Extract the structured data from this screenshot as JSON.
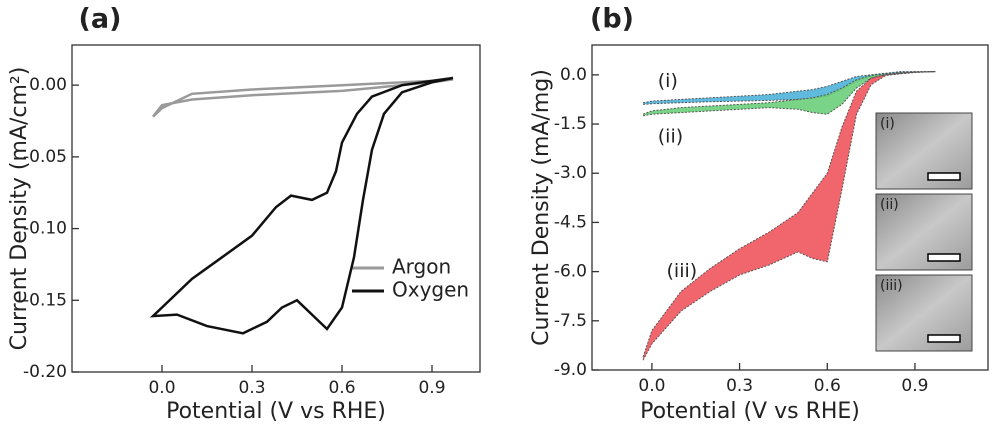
{
  "chart_data": [
    {
      "type": "line",
      "title": "(a)",
      "xlabel": "Potential (V vs RHE)",
      "ylabel": "Current Density (mA/cm²)",
      "xlim": [
        -0.3,
        1.06
      ],
      "ylim": [
        -0.2,
        0.028
      ],
      "xticks": [
        {
          "value": 0,
          "label": "0.0"
        },
        0.3,
        0.6,
        0.9
      ],
      "yticks": [
        {
          "value": 0,
          "label": "0.00"
        },
        -0.05,
        {
          "value": -0.1,
          "label": "-0.10"
        },
        -0.15,
        {
          "value": -0.2,
          "label": "-0.20"
        }
      ],
      "legend": "right",
      "series": [
        {
          "name": "Argon",
          "color": "#9a9a9a",
          "x": [
            -0.03,
            0.0,
            0.1,
            0.3,
            0.6,
            0.9,
            0.97,
            0.9,
            0.6,
            0.3,
            0.1,
            0.0,
            -0.03
          ],
          "values": [
            -0.022,
            -0.016,
            -0.006,
            -0.003,
            0.0,
            0.003,
            0.004,
            0.002,
            -0.004,
            -0.007,
            -0.01,
            -0.014,
            -0.022
          ]
        },
        {
          "name": "Oxygen",
          "color": "#111111",
          "x": [
            0.97,
            0.9,
            0.8,
            0.74,
            0.7,
            0.67,
            0.64,
            0.6,
            0.55,
            0.5,
            0.45,
            0.4,
            0.35,
            0.27,
            0.15,
            0.05,
            -0.03,
            0.0,
            0.1,
            0.2,
            0.3,
            0.38,
            0.43,
            0.5,
            0.55,
            0.58,
            0.6,
            0.65,
            0.7,
            0.8,
            0.9,
            0.97
          ],
          "values": [
            0.005,
            0.002,
            -0.005,
            -0.02,
            -0.045,
            -0.08,
            -0.12,
            -0.155,
            -0.17,
            -0.16,
            -0.15,
            -0.155,
            -0.165,
            -0.173,
            -0.168,
            -0.16,
            -0.161,
            -0.155,
            -0.135,
            -0.12,
            -0.105,
            -0.085,
            -0.077,
            -0.08,
            -0.075,
            -0.06,
            -0.04,
            -0.02,
            -0.008,
            0.0,
            0.003,
            0.005
          ]
        }
      ]
    },
    {
      "type": "band",
      "title": "(b)",
      "xlabel": "Potential (V vs RHE)",
      "ylabel": "Current Density (mA/mg)",
      "xlim": [
        -0.205,
        1.15
      ],
      "ylim": [
        -9.0,
        0.91
      ],
      "xticks": [
        {
          "value": 0,
          "label": "0.0"
        },
        0.3,
        0.6,
        0.9
      ],
      "yticks": [
        {
          "value": 0,
          "label": "0.0"
        },
        -1.5,
        {
          "value": -3,
          "label": "-3.0"
        },
        -4.5,
        {
          "value": -6,
          "label": "-6.0"
        },
        -7.5,
        {
          "value": -9,
          "label": "-9.0"
        }
      ],
      "x": [
        -0.03,
        0.0,
        0.1,
        0.2,
        0.3,
        0.4,
        0.5,
        0.55,
        0.6,
        0.65,
        0.7,
        0.75,
        0.8,
        0.85,
        0.9,
        0.97
      ],
      "series": [
        {
          "name": "(i)",
          "color": "#4fb3d9",
          "upper": [
            -0.85,
            -0.8,
            -0.75,
            -0.7,
            -0.65,
            -0.6,
            -0.5,
            -0.45,
            -0.35,
            -0.2,
            -0.05,
            0.0,
            0.05,
            0.1,
            0.1,
            0.1
          ],
          "lower": [
            -0.9,
            -0.88,
            -0.85,
            -0.82,
            -0.8,
            -0.78,
            -0.75,
            -0.72,
            -0.65,
            -0.45,
            -0.2,
            -0.05,
            0.0,
            0.05,
            0.08,
            0.1
          ]
        },
        {
          "name": "(ii)",
          "color": "#6ccf7a",
          "upper": [
            -1.2,
            -1.1,
            -1.0,
            -0.95,
            -0.9,
            -0.85,
            -0.75,
            -0.7,
            -0.6,
            -0.4,
            -0.15,
            -0.02,
            0.03,
            0.07,
            0.1,
            0.1
          ],
          "lower": [
            -1.25,
            -1.2,
            -1.15,
            -1.1,
            -1.05,
            -1.0,
            -1.05,
            -1.15,
            -1.2,
            -0.9,
            -0.4,
            -0.1,
            0.0,
            0.05,
            0.08,
            0.1
          ]
        },
        {
          "name": "(iii)",
          "color": "#f0545c",
          "upper": [
            -8.6,
            -7.8,
            -6.6,
            -5.9,
            -5.3,
            -4.8,
            -4.2,
            -3.6,
            -3.0,
            -1.6,
            -0.5,
            -0.1,
            0.0,
            0.05,
            0.08,
            0.1
          ],
          "lower": [
            -8.7,
            -8.2,
            -7.2,
            -6.6,
            -6.1,
            -5.8,
            -5.4,
            -5.6,
            -5.7,
            -3.5,
            -1.2,
            -0.3,
            -0.02,
            0.03,
            0.07,
            0.1
          ]
        }
      ],
      "insets": [
        "(i)",
        "(ii)",
        "(iii)"
      ]
    }
  ]
}
